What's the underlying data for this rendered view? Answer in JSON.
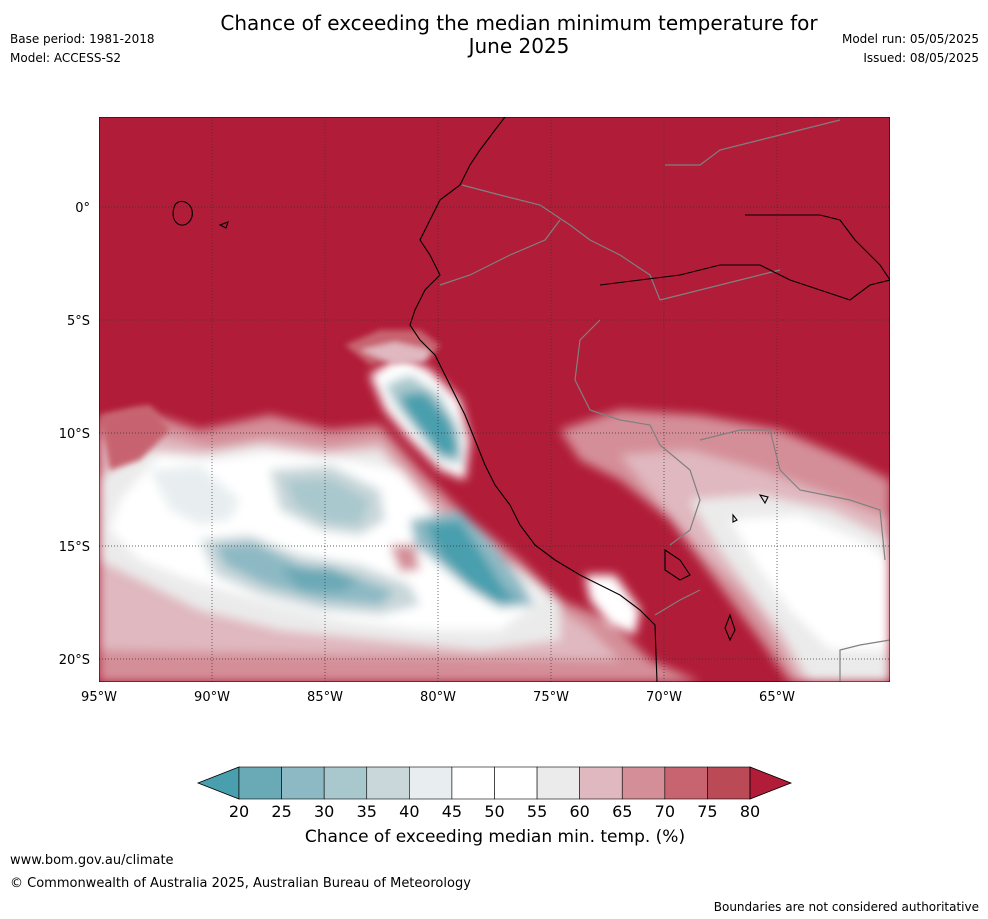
{
  "header": {
    "title_line1": "Chance of exceeding the median minimum temperature for",
    "title_line2": "June 2025",
    "base_period": "Base period: 1981-2018",
    "model": "Model: ACCESS-S2",
    "model_run": "Model run: 05/05/2025",
    "issued": "Issued: 08/05/2025"
  },
  "map": {
    "lat_ticks": [
      "0°",
      "5°S",
      "10°S",
      "15°S",
      "20°S"
    ],
    "lon_ticks": [
      "95°W",
      "90°W",
      "85°W",
      "80°W",
      "75°W",
      "70°W",
      "65°W"
    ]
  },
  "colorbar": {
    "tick_labels": [
      "20",
      "25",
      "30",
      "35",
      "40",
      "45",
      "50",
      "55",
      "60",
      "65",
      "70",
      "75",
      "80"
    ],
    "colors": [
      "#4a9fae",
      "#6aa9b6",
      "#8db9c4",
      "#a9c8cd",
      "#c9d7da",
      "#e8eef0",
      "#ffffff",
      "#ffffff",
      "#ebebeb",
      "#e0b8bf",
      "#d48e98",
      "#c7646f",
      "#b94a56",
      "#b11c38"
    ],
    "label": "Chance of exceeding median min. temp. (%)"
  },
  "footer": {
    "url": "www.bom.gov.au/climate",
    "copyright": "© Commonwealth of Australia 2025, Australian Bureau of Meteorology",
    "note": "Boundaries are not considered authoritative"
  }
}
